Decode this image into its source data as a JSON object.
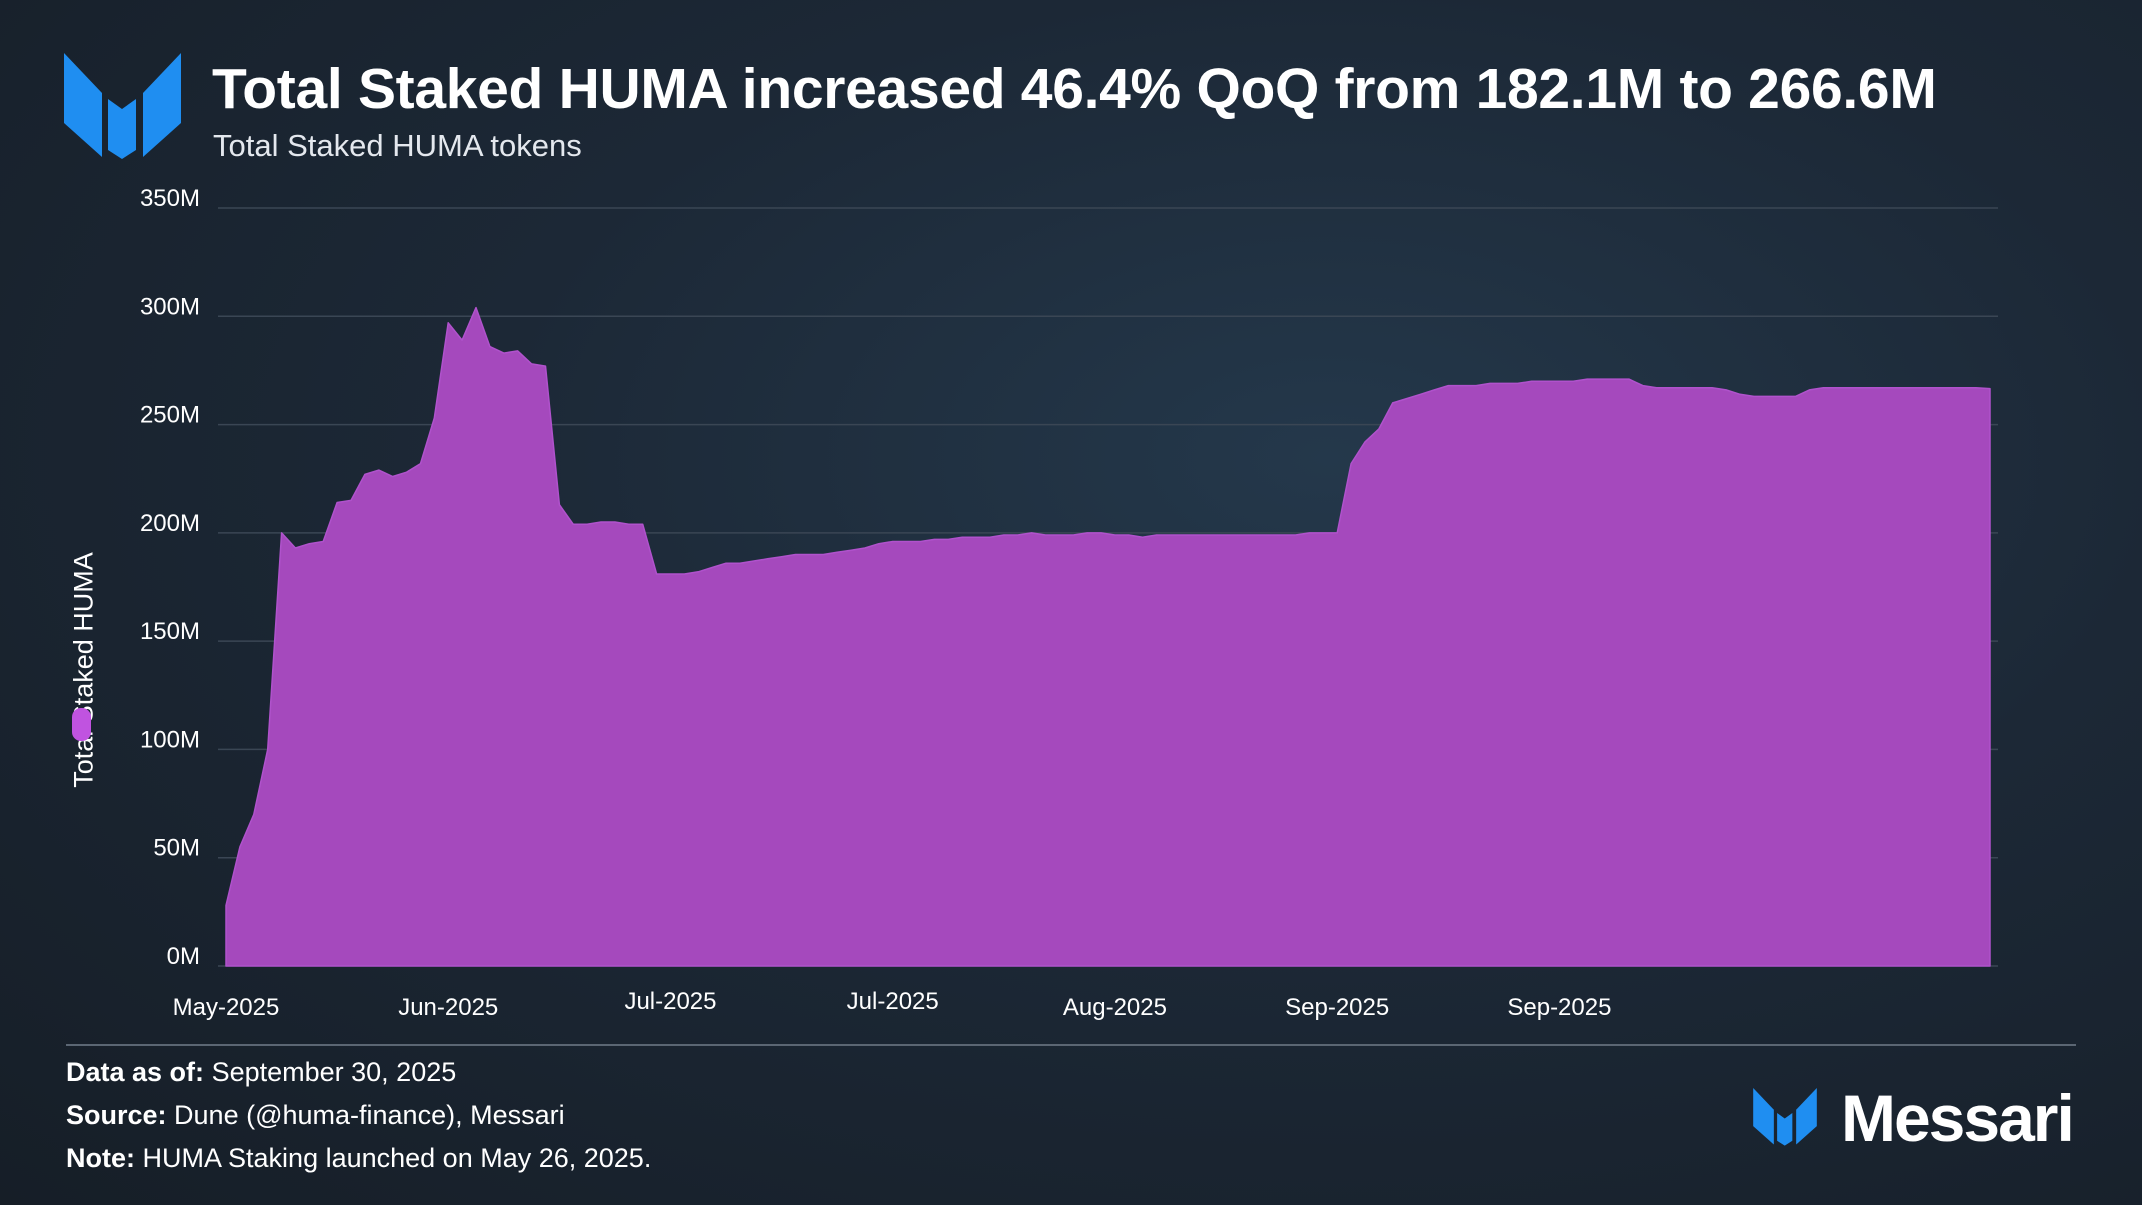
{
  "header": {
    "title": "Total Staked HUMA increased 46.4% QoQ from 182.1M to 266.6M",
    "subtitle": "Total Staked HUMA tokens"
  },
  "colors": {
    "area_fill": "#a549bd",
    "legend_swatch": "#c053e0",
    "logo_blue": "#1f8ef1",
    "gridline": "#3a4654"
  },
  "chart_data": {
    "type": "area",
    "ylabel": "Total Staked HUMA",
    "legend": [
      "Total Staked HUMA"
    ],
    "legend_placement": "left, beside y-axis label",
    "ylim": [
      0,
      350
    ],
    "y_ticks": [
      "0M",
      "50M",
      "100M",
      "150M",
      "200M",
      "250M",
      "300M",
      "350M"
    ],
    "x_range": [
      "2025-05-26",
      "2025-09-30"
    ],
    "x_ticks": [
      {
        "date": "2025-05-26",
        "label": "May-2025"
      },
      {
        "date": "2025-06-11",
        "label": "Jun-2025"
      },
      {
        "date": "2025-06-27",
        "label": "Jul-2025"
      },
      {
        "date": "2025-07-13",
        "label": "Jul-2025"
      },
      {
        "date": "2025-07-29",
        "label": "Aug-2025"
      },
      {
        "date": "2025-08-14",
        "label": "Sep-2025"
      },
      {
        "date": "2025-08-30",
        "label": "Sep-2025"
      }
    ],
    "grid": true,
    "series": [
      {
        "name": "Total Staked HUMA",
        "points": [
          [
            "2025-05-26",
            28
          ],
          [
            "2025-05-27",
            55
          ],
          [
            "2025-05-28",
            70
          ],
          [
            "2025-05-29",
            100
          ],
          [
            "2025-05-30",
            200
          ],
          [
            "2025-05-31",
            193
          ],
          [
            "2025-06-01",
            195
          ],
          [
            "2025-06-02",
            196
          ],
          [
            "2025-06-03",
            214
          ],
          [
            "2025-06-04",
            215
          ],
          [
            "2025-06-05",
            227
          ],
          [
            "2025-06-06",
            229
          ],
          [
            "2025-06-07",
            226
          ],
          [
            "2025-06-08",
            228
          ],
          [
            "2025-06-09",
            232
          ],
          [
            "2025-06-10",
            253
          ],
          [
            "2025-06-11",
            297
          ],
          [
            "2025-06-12",
            289
          ],
          [
            "2025-06-13",
            304
          ],
          [
            "2025-06-14",
            286
          ],
          [
            "2025-06-15",
            283
          ],
          [
            "2025-06-16",
            284
          ],
          [
            "2025-06-17",
            278
          ],
          [
            "2025-06-18",
            277
          ],
          [
            "2025-06-19",
            213
          ],
          [
            "2025-06-20",
            204
          ],
          [
            "2025-06-21",
            204
          ],
          [
            "2025-06-22",
            205
          ],
          [
            "2025-06-23",
            205
          ],
          [
            "2025-06-24",
            204
          ],
          [
            "2025-06-25",
            204
          ],
          [
            "2025-06-26",
            181
          ],
          [
            "2025-06-27",
            181
          ],
          [
            "2025-06-28",
            181
          ],
          [
            "2025-06-29",
            182
          ],
          [
            "2025-06-30",
            184
          ],
          [
            "2025-07-01",
            186
          ],
          [
            "2025-07-02",
            186
          ],
          [
            "2025-07-03",
            187
          ],
          [
            "2025-07-04",
            188
          ],
          [
            "2025-07-05",
            189
          ],
          [
            "2025-07-06",
            190
          ],
          [
            "2025-07-07",
            190
          ],
          [
            "2025-07-08",
            190
          ],
          [
            "2025-07-09",
            191
          ],
          [
            "2025-07-10",
            192
          ],
          [
            "2025-07-11",
            193
          ],
          [
            "2025-07-12",
            195
          ],
          [
            "2025-07-13",
            196
          ],
          [
            "2025-07-14",
            196
          ],
          [
            "2025-07-15",
            196
          ],
          [
            "2025-07-16",
            197
          ],
          [
            "2025-07-17",
            197
          ],
          [
            "2025-07-18",
            198
          ],
          [
            "2025-07-19",
            198
          ],
          [
            "2025-07-20",
            198
          ],
          [
            "2025-07-21",
            199
          ],
          [
            "2025-07-22",
            199
          ],
          [
            "2025-07-23",
            200
          ],
          [
            "2025-07-24",
            199
          ],
          [
            "2025-07-25",
            199
          ],
          [
            "2025-07-26",
            199
          ],
          [
            "2025-07-27",
            200
          ],
          [
            "2025-07-28",
            200
          ],
          [
            "2025-07-29",
            199
          ],
          [
            "2025-07-30",
            199
          ],
          [
            "2025-07-31",
            198
          ],
          [
            "2025-08-01",
            199
          ],
          [
            "2025-08-02",
            199
          ],
          [
            "2025-08-03",
            199
          ],
          [
            "2025-08-04",
            199
          ],
          [
            "2025-08-05",
            199
          ],
          [
            "2025-08-06",
            199
          ],
          [
            "2025-08-07",
            199
          ],
          [
            "2025-08-08",
            199
          ],
          [
            "2025-08-09",
            199
          ],
          [
            "2025-08-10",
            199
          ],
          [
            "2025-08-11",
            199
          ],
          [
            "2025-08-12",
            200
          ],
          [
            "2025-08-13",
            200
          ],
          [
            "2025-08-14",
            200
          ],
          [
            "2025-08-15",
            232
          ],
          [
            "2025-08-16",
            242
          ],
          [
            "2025-08-17",
            248
          ],
          [
            "2025-08-18",
            260
          ],
          [
            "2025-08-19",
            262
          ],
          [
            "2025-08-20",
            264
          ],
          [
            "2025-08-21",
            266
          ],
          [
            "2025-08-22",
            268
          ],
          [
            "2025-08-23",
            268
          ],
          [
            "2025-08-24",
            268
          ],
          [
            "2025-08-25",
            269
          ],
          [
            "2025-08-26",
            269
          ],
          [
            "2025-08-27",
            269
          ],
          [
            "2025-08-28",
            270
          ],
          [
            "2025-08-29",
            270
          ],
          [
            "2025-08-30",
            270
          ],
          [
            "2025-08-31",
            270
          ],
          [
            "2025-09-01",
            271
          ],
          [
            "2025-09-02",
            271
          ],
          [
            "2025-09-03",
            271
          ],
          [
            "2025-09-04",
            271
          ],
          [
            "2025-09-05",
            268
          ],
          [
            "2025-09-06",
            267
          ],
          [
            "2025-09-07",
            267
          ],
          [
            "2025-09-08",
            267
          ],
          [
            "2025-09-09",
            267
          ],
          [
            "2025-09-10",
            267
          ],
          [
            "2025-09-11",
            266
          ],
          [
            "2025-09-12",
            264
          ],
          [
            "2025-09-13",
            263
          ],
          [
            "2025-09-14",
            263
          ],
          [
            "2025-09-15",
            263
          ],
          [
            "2025-09-16",
            263
          ],
          [
            "2025-09-17",
            266
          ],
          [
            "2025-09-18",
            267
          ],
          [
            "2025-09-19",
            267
          ],
          [
            "2025-09-20",
            267
          ],
          [
            "2025-09-21",
            267
          ],
          [
            "2025-09-22",
            267
          ],
          [
            "2025-09-23",
            267
          ],
          [
            "2025-09-24",
            267
          ],
          [
            "2025-09-25",
            267
          ],
          [
            "2025-09-26",
            267
          ],
          [
            "2025-09-27",
            267
          ],
          [
            "2025-09-28",
            267
          ],
          [
            "2025-09-29",
            267
          ],
          [
            "2025-09-30",
            266.6
          ]
        ]
      }
    ]
  },
  "footer": {
    "data_as_of_label": "Data as of:",
    "data_as_of_value": "September 30, 2025",
    "source_label": "Source:",
    "source_value": "Dune (@huma-finance), Messari",
    "note_label": "Note:",
    "note_value": "HUMA Staking launched on May 26, 2025."
  },
  "brand": {
    "name": "Messari",
    "icon": "messari-logo-icon"
  }
}
